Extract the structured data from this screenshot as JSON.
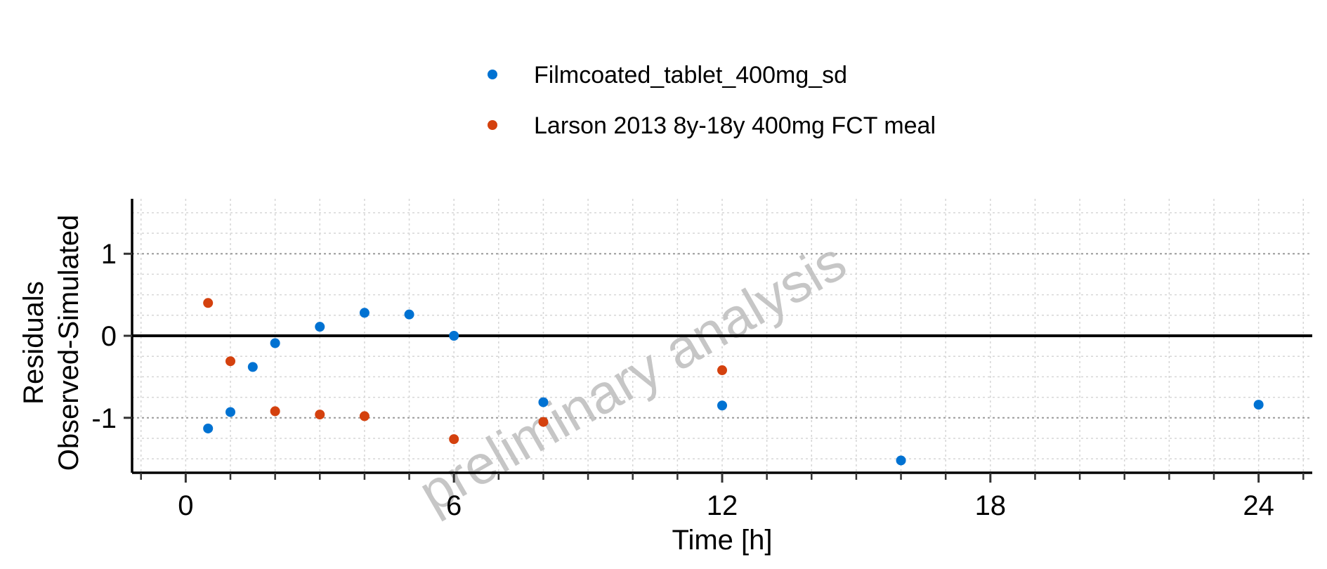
{
  "chart_data": {
    "type": "scatter",
    "xlabel": "Time [h]",
    "ylabel_lines": [
      "Residuals",
      "Observed-Simulated"
    ],
    "xlim": [
      -1.2,
      25.2
    ],
    "ylim": [
      -1.67,
      1.67
    ],
    "x_ticks": [
      0,
      6,
      12,
      18,
      24
    ],
    "x_minor_step": 1,
    "y_ticks": [
      1,
      0,
      -1
    ],
    "y_tick_labels": [
      "1",
      "0",
      "-1"
    ],
    "grid": true,
    "reference_line_y": 0,
    "legend_position": "top",
    "watermark": "preliminary analysis",
    "series": [
      {
        "name": "Filmcoated_tablet_400mg_sd",
        "color": "#0072d2",
        "points": [
          {
            "x": 0.5,
            "y": -1.13
          },
          {
            "x": 1.0,
            "y": -0.93
          },
          {
            "x": 1.5,
            "y": -0.38
          },
          {
            "x": 2.0,
            "y": -0.09
          },
          {
            "x": 3.0,
            "y": 0.11
          },
          {
            "x": 4.0,
            "y": 0.28
          },
          {
            "x": 5.0,
            "y": 0.26
          },
          {
            "x": 6.0,
            "y": 0.0
          },
          {
            "x": 8.0,
            "y": -0.81
          },
          {
            "x": 12.0,
            "y": -0.85
          },
          {
            "x": 16.0,
            "y": -1.52
          },
          {
            "x": 24.0,
            "y": -0.84
          }
        ]
      },
      {
        "name": "Larson 2013 8y-18y 400mg FCT meal",
        "color": "#d4410e",
        "points": [
          {
            "x": 0.5,
            "y": 0.4
          },
          {
            "x": 1.0,
            "y": -0.31
          },
          {
            "x": 2.0,
            "y": -0.92
          },
          {
            "x": 3.0,
            "y": -0.96
          },
          {
            "x": 4.0,
            "y": -0.98
          },
          {
            "x": 6.0,
            "y": -1.26
          },
          {
            "x": 8.0,
            "y": -1.05
          },
          {
            "x": 12.0,
            "y": -0.42
          }
        ]
      }
    ]
  }
}
